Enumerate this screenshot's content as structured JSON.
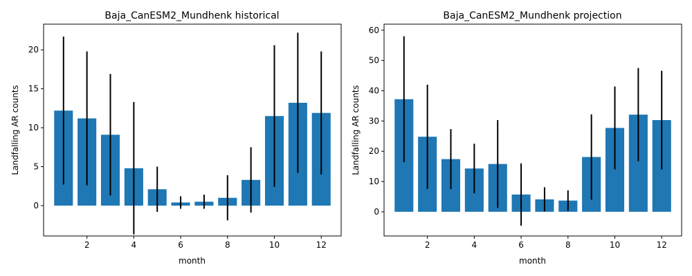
{
  "chart_data": [
    {
      "type": "bar",
      "title": "Baja_CanESM2_Mundhenk historical",
      "xlabel": "month",
      "ylabel": "Landfalling AR counts",
      "x": [
        1,
        2,
        3,
        4,
        5,
        6,
        7,
        8,
        9,
        10,
        11,
        12
      ],
      "values": [
        12.2,
        11.2,
        9.1,
        4.8,
        2.1,
        0.4,
        0.5,
        1.0,
        3.3,
        11.5,
        13.2,
        11.9
      ],
      "error": [
        9.5,
        8.6,
        7.8,
        8.5,
        2.9,
        0.8,
        0.9,
        2.9,
        4.2,
        9.1,
        9.0,
        7.9
      ],
      "xlim": [
        0.15,
        12.85
      ],
      "ylim": [
        -3.9,
        23.3
      ],
      "xticks": [
        2,
        4,
        6,
        8,
        10,
        12
      ],
      "yticks": [
        0,
        5,
        10,
        15,
        20
      ],
      "bar_color": "#1f77b4",
      "error_color": "#000000",
      "grid": false
    },
    {
      "type": "bar",
      "title": "Baja_CanESM2_Mundhenk projection",
      "xlabel": "month",
      "ylabel": "Landfalling AR counts",
      "x": [
        1,
        2,
        3,
        4,
        5,
        6,
        7,
        8,
        9,
        10,
        11,
        12
      ],
      "values": [
        37.2,
        24.8,
        17.4,
        14.3,
        15.8,
        5.7,
        4.1,
        3.7,
        18.1,
        27.7,
        32.1,
        30.3
      ],
      "error": [
        20.8,
        17.2,
        9.9,
        8.2,
        14.5,
        10.3,
        4.0,
        3.4,
        14.1,
        13.7,
        15.4,
        16.3
      ],
      "xlim": [
        0.15,
        12.85
      ],
      "ylim": [
        -8.0,
        62.0
      ],
      "xticks": [
        2,
        4,
        6,
        8,
        10,
        12
      ],
      "yticks": [
        0,
        10,
        20,
        30,
        40,
        50,
        60
      ],
      "bar_color": "#1f77b4",
      "error_color": "#000000",
      "grid": false
    }
  ]
}
